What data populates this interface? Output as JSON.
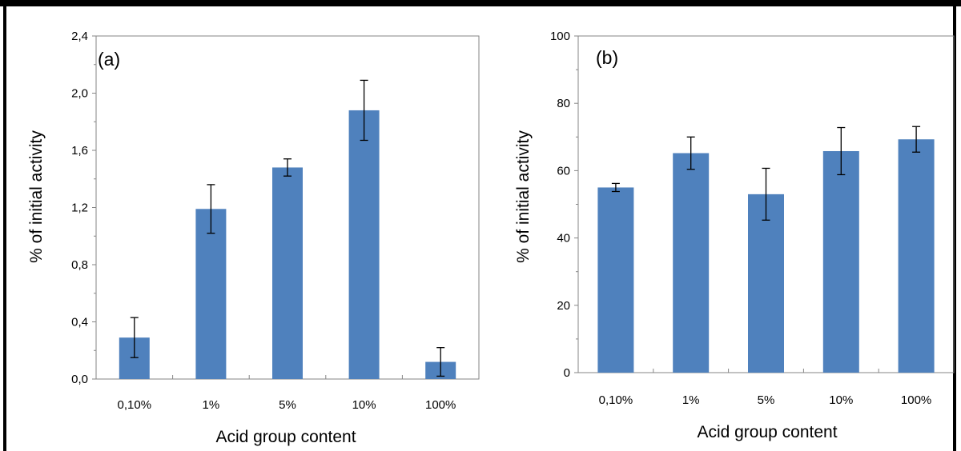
{
  "chart_data": [
    {
      "type": "bar",
      "panel_label": "(a)",
      "categories": [
        "0,10%",
        "1%",
        "5%",
        "10%",
        "100%"
      ],
      "values": [
        0.29,
        1.19,
        1.48,
        1.88,
        0.12
      ],
      "errors": [
        0.14,
        0.17,
        0.06,
        0.21,
        0.1
      ],
      "xlabel": "Acid group content",
      "ylabel": "% of initial activity",
      "ylim": [
        0,
        2.4
      ],
      "yticks": [
        0.0,
        0.4,
        0.8,
        1.2,
        1.6,
        2.0,
        2.4
      ],
      "ytick_labels": [
        "0,0",
        "0,4",
        "0,8",
        "1,2",
        "1,6",
        "2,0",
        "2,4"
      ],
      "bar_color": "#4f81bd",
      "grid": false,
      "legend": "none"
    },
    {
      "type": "bar",
      "panel_label": "(b)",
      "categories": [
        "0,10%",
        "1%",
        "5%",
        "10%",
        "100%"
      ],
      "values": [
        55.0,
        65.2,
        53.0,
        65.8,
        69.3
      ],
      "errors": [
        1.2,
        4.8,
        7.7,
        7.0,
        3.8
      ],
      "xlabel": "Acid group content",
      "ylabel": "% of initial activity",
      "ylim": [
        0,
        100
      ],
      "yticks": [
        0,
        20,
        40,
        60,
        80,
        100
      ],
      "ytick_labels": [
        "0",
        "20",
        "40",
        "60",
        "80",
        "100"
      ],
      "bar_color": "#4f81bd",
      "grid": false,
      "legend": "none"
    }
  ]
}
